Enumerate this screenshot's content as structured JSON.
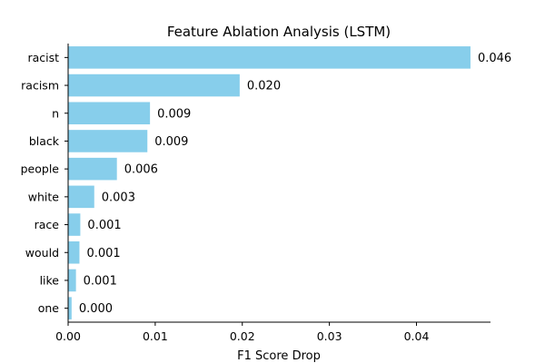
{
  "chart_data": {
    "type": "bar",
    "orientation": "horizontal",
    "title": "Feature Ablation Analysis (LSTM)",
    "xlabel": "F1 Score Drop",
    "ylabel": "",
    "categories": [
      "racist",
      "racism",
      "n",
      "black",
      "people",
      "white",
      "race",
      "would",
      "like",
      "one"
    ],
    "values": [
      0.0462,
      0.0197,
      0.0094,
      0.0091,
      0.0056,
      0.003,
      0.0014,
      0.0013,
      0.0009,
      0.0004
    ],
    "value_labels": [
      "0.046",
      "0.020",
      "0.009",
      "0.009",
      "0.006",
      "0.003",
      "0.001",
      "0.001",
      "0.001",
      "0.000"
    ],
    "xlim": [
      0,
      0.0485
    ],
    "xticks": [
      0,
      0.01,
      0.02,
      0.03,
      0.04
    ],
    "xtick_labels": [
      "0.00",
      "0.01",
      "0.02",
      "0.03",
      "0.04"
    ],
    "grid": false,
    "bar_color": "#87CEEB"
  }
}
